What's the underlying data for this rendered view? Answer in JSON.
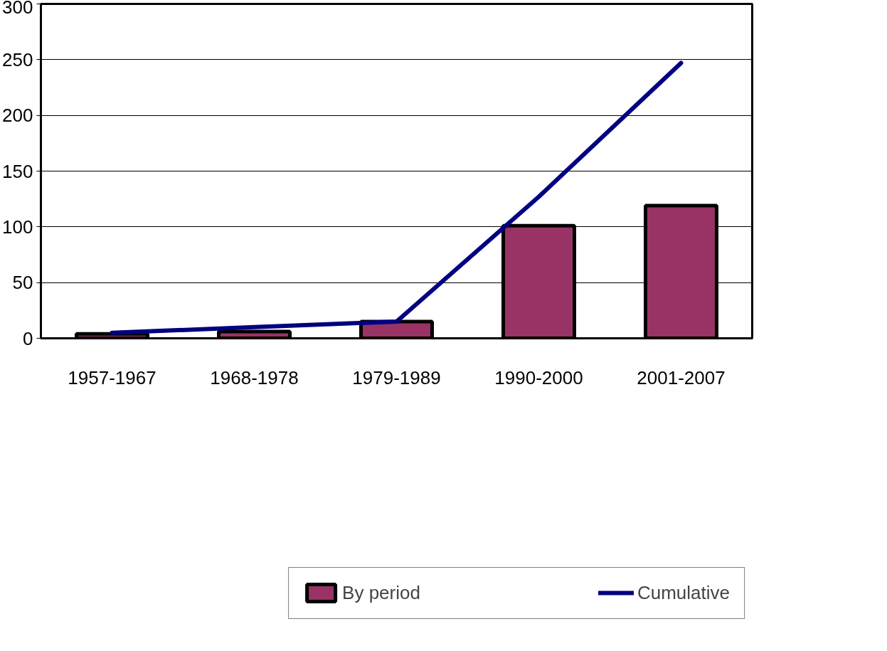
{
  "chart_data": {
    "type": "bar",
    "categories": [
      "1957-1967",
      "1968-1978",
      "1979-1989",
      "1990-2000",
      "2001-2007"
    ],
    "series": [
      {
        "name": "By period",
        "color": "#993366",
        "values": [
          4,
          6,
          15,
          101,
          119
        ]
      },
      {
        "name": "Cumulative",
        "type": "line",
        "color": "#000080",
        "values": [
          5,
          10,
          15,
          127,
          247
        ]
      }
    ],
    "ylim": [
      0,
      300
    ],
    "yticks": [
      0,
      50,
      100,
      150,
      200,
      250,
      300
    ],
    "grid": "y",
    "legend": "bottom"
  }
}
